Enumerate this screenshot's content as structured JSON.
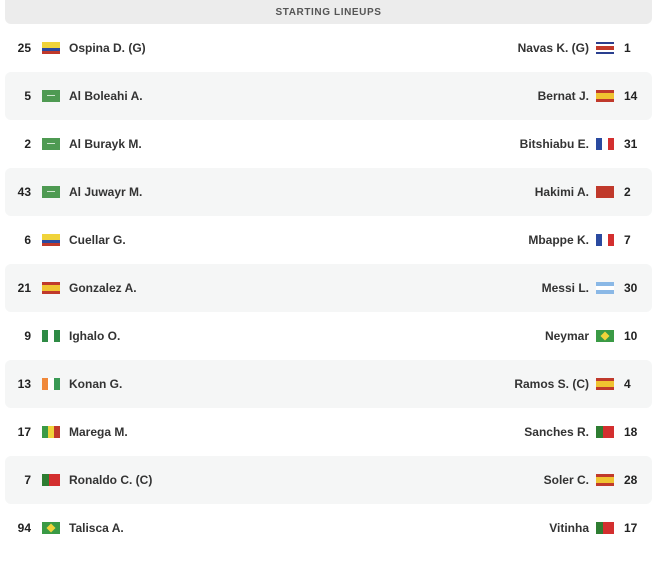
{
  "header": {
    "title": "STARTING LINEUPS"
  },
  "lineups": [
    {
      "home": {
        "number": "25",
        "flag": "co",
        "name": "Ospina D. (G)"
      },
      "away": {
        "number": "1",
        "flag": "cr",
        "name": "Navas K. (G)"
      }
    },
    {
      "home": {
        "number": "5",
        "flag": "sa",
        "name": "Al Boleahi A."
      },
      "away": {
        "number": "14",
        "flag": "es",
        "name": "Bernat J."
      }
    },
    {
      "home": {
        "number": "2",
        "flag": "sa",
        "name": "Al Burayk M."
      },
      "away": {
        "number": "31",
        "flag": "fr",
        "name": "Bitshiabu E."
      }
    },
    {
      "home": {
        "number": "43",
        "flag": "sa",
        "name": "Al Juwayr M."
      },
      "away": {
        "number": "2",
        "flag": "ma",
        "name": "Hakimi A."
      }
    },
    {
      "home": {
        "number": "6",
        "flag": "co",
        "name": "Cuellar G."
      },
      "away": {
        "number": "7",
        "flag": "fr",
        "name": "Mbappe K."
      }
    },
    {
      "home": {
        "number": "21",
        "flag": "es",
        "name": "Gonzalez A."
      },
      "away": {
        "number": "30",
        "flag": "ar",
        "name": "Messi L."
      }
    },
    {
      "home": {
        "number": "9",
        "flag": "ng",
        "name": "Ighalo O."
      },
      "away": {
        "number": "10",
        "flag": "br",
        "name": "Neymar"
      }
    },
    {
      "home": {
        "number": "13",
        "flag": "ci",
        "name": "Konan G."
      },
      "away": {
        "number": "4",
        "flag": "es",
        "name": "Ramos S. (C)"
      }
    },
    {
      "home": {
        "number": "17",
        "flag": "ml",
        "name": "Marega M."
      },
      "away": {
        "number": "18",
        "flag": "pt",
        "name": "Sanches R."
      }
    },
    {
      "home": {
        "number": "7",
        "flag": "pt",
        "name": "Ronaldo C. (C)"
      },
      "away": {
        "number": "28",
        "flag": "es",
        "name": "Soler C."
      }
    },
    {
      "home": {
        "number": "94",
        "flag": "br",
        "name": "Talisca A."
      },
      "away": {
        "number": "17",
        "flag": "pt",
        "name": "Vitinha"
      }
    }
  ]
}
